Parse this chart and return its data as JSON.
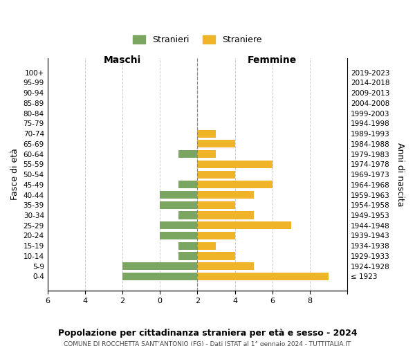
{
  "age_groups": [
    "100+",
    "95-99",
    "90-94",
    "85-89",
    "80-84",
    "75-79",
    "70-74",
    "65-69",
    "60-64",
    "55-59",
    "50-54",
    "45-49",
    "40-44",
    "35-39",
    "30-34",
    "25-29",
    "20-24",
    "15-19",
    "10-14",
    "5-9",
    "0-4"
  ],
  "birth_years": [
    "≤ 1923",
    "1924-1928",
    "1929-1933",
    "1934-1938",
    "1939-1943",
    "1944-1948",
    "1949-1953",
    "1954-1958",
    "1959-1963",
    "1964-1968",
    "1969-1973",
    "1974-1978",
    "1979-1983",
    "1984-1988",
    "1989-1993",
    "1994-1998",
    "1999-2003",
    "2004-2008",
    "2009-2013",
    "2014-2018",
    "2019-2023"
  ],
  "maschi": [
    0,
    0,
    0,
    0,
    0,
    0,
    0,
    0,
    1,
    0,
    0,
    1,
    2,
    2,
    1,
    2,
    2,
    1,
    1,
    4,
    4
  ],
  "femmine": [
    0,
    0,
    0,
    0,
    0,
    0,
    1,
    2,
    1,
    4,
    2,
    4,
    3,
    2,
    3,
    5,
    2,
    1,
    2,
    3,
    7
  ],
  "color_maschi": "#7aa661",
  "color_femmine": "#f0b429",
  "title": "Popolazione per cittadinanza straniera per età e sesso - 2024",
  "subtitle": "COMUNE DI ROCCHETTA SANT’ANTONIO (FG) - Dati ISTAT al 1° gennaio 2024 - TUTTITALIA.IT",
  "label_maschi": "Maschi",
  "label_femmine": "Femmine",
  "ylabel_left": "Fasce di età",
  "ylabel_right": "Anni di nascita",
  "legend_maschi": "Stranieri",
  "legend_femmine": "Straniere",
  "xlim": 8,
  "background_color": "#ffffff",
  "grid_color": "#cccccc"
}
